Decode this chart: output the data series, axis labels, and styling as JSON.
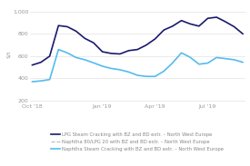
{
  "ylabel": "$/t",
  "yticks": [
    200,
    400,
    600,
    800,
    1000
  ],
  "ylim": [
    180,
    1060
  ],
  "xtick_labels": [
    "Oct '18",
    "Jan '19",
    "Apr '19",
    "Jul '19"
  ],
  "xtick_positions": [
    0.0,
    0.333,
    0.583,
    0.833
  ],
  "background_color": "#ffffff",
  "grid_color": "#e8e8e8",
  "series": [
    {
      "label": "LPG Steam Cracking with BZ and BD extr. – North West Europe",
      "color": "#1a1a6e",
      "linewidth": 1.2,
      "y": [
        520,
        545,
        600,
        875,
        865,
        825,
        760,
        720,
        640,
        625,
        620,
        650,
        660,
        700,
        755,
        835,
        870,
        920,
        890,
        870,
        940,
        950,
        910,
        865,
        800
      ]
    },
    {
      "label": "Naphtha 80/LPG 20 with BZ and BD extr. – North West Europe",
      "color": "#bbbbbb",
      "linewidth": 0.8,
      "y": null
    },
    {
      "label": "Naphtha Steam Cracking with BZ and BD extr. – North West Europe",
      "color": "#55bbee",
      "linewidth": 1.2,
      "y": [
        370,
        378,
        390,
        660,
        630,
        588,
        568,
        540,
        510,
        490,
        478,
        458,
        428,
        418,
        418,
        465,
        540,
        630,
        590,
        528,
        538,
        588,
        578,
        568,
        545
      ]
    }
  ],
  "legend_fontsize": 3.8,
  "tick_fontsize": 4.5,
  "ylabel_fontsize": 4.5
}
